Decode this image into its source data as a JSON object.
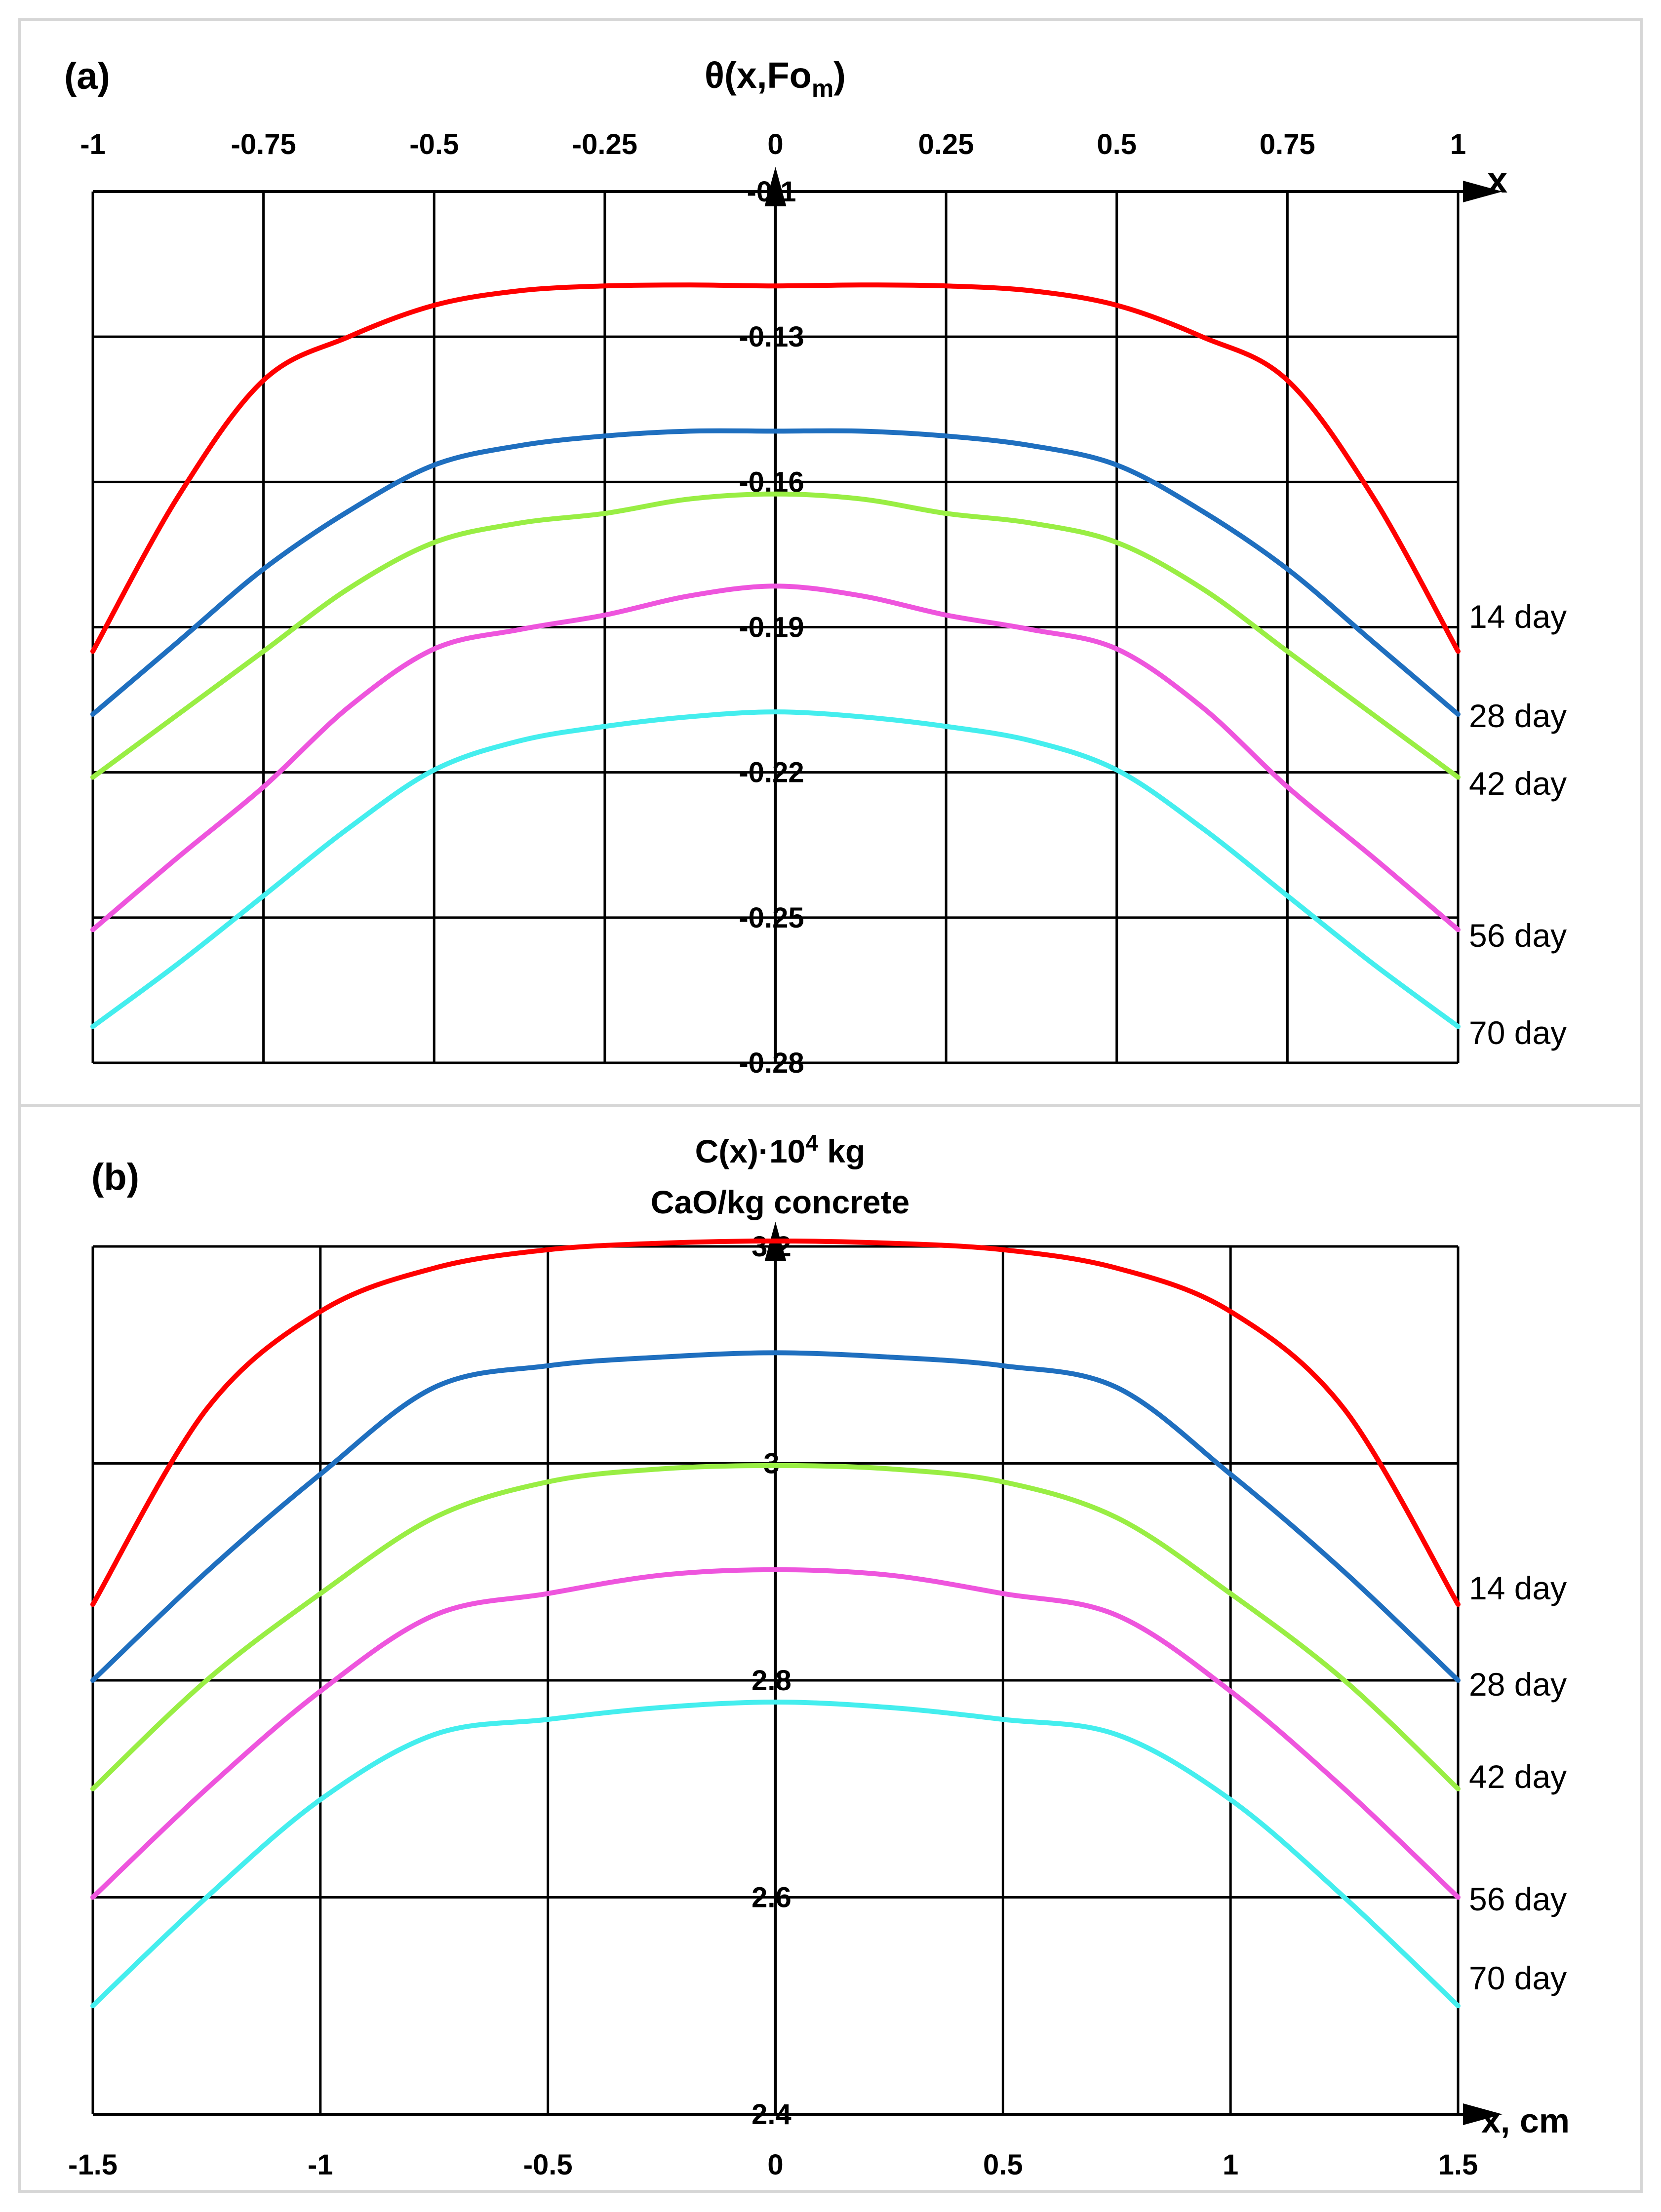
{
  "chart_data": [
    {
      "type": "line",
      "panel_label": "(a)",
      "title": "θ(x,Fo",
      "title_subscript": "m",
      "title_suffix": ")",
      "xlabel": "x",
      "ylabel": "",
      "xlim": [
        -1,
        1
      ],
      "ylim": [
        -0.28,
        -0.1
      ],
      "x_ticks": [
        "-1",
        "-0.75",
        "-0.5",
        "-0.25",
        "0",
        "0.25",
        "0.5",
        "0.75",
        "1"
      ],
      "y_ticks": [
        "-0.1",
        "-0.13",
        "-0.16",
        "-0.19",
        "-0.22",
        "-0.25",
        "-0.28"
      ],
      "grid": true,
      "x": [
        -1,
        -0.875,
        -0.75,
        -0.625,
        -0.5,
        -0.375,
        -0.25,
        -0.125,
        0,
        0.125,
        0.25,
        0.375,
        0.5,
        0.625,
        0.75,
        0.875,
        1
      ],
      "series": [
        {
          "name": "14 day",
          "color": "#ff0000",
          "values": [
            -0.195,
            -0.163,
            -0.139,
            -0.13,
            -0.1235,
            -0.1205,
            -0.1195,
            -0.1193,
            -0.1195,
            -0.1193,
            -0.1195,
            -0.1205,
            -0.1235,
            -0.13,
            -0.139,
            -0.163,
            -0.195
          ]
        },
        {
          "name": "28 day",
          "color": "#1f6fbf",
          "values": [
            -0.208,
            -0.193,
            -0.178,
            -0.166,
            -0.1565,
            -0.1525,
            -0.1505,
            -0.1495,
            -0.1495,
            -0.1495,
            -0.1505,
            -0.1525,
            -0.1565,
            -0.166,
            -0.178,
            -0.193,
            -0.208
          ]
        },
        {
          "name": "42 day",
          "color": "#99ee44",
          "values": [
            -0.221,
            -0.208,
            -0.195,
            -0.182,
            -0.1725,
            -0.1685,
            -0.1665,
            -0.1635,
            -0.1625,
            -0.1635,
            -0.1665,
            -0.1685,
            -0.1725,
            -0.182,
            -0.195,
            -0.208,
            -0.221
          ]
        },
        {
          "name": "56 day",
          "color": "#ee55dd",
          "values": [
            -0.2525,
            -0.2375,
            -0.223,
            -0.2065,
            -0.1945,
            -0.1905,
            -0.1875,
            -0.1835,
            -0.1815,
            -0.1835,
            -0.1875,
            -0.1905,
            -0.1945,
            -0.2065,
            -0.223,
            -0.2375,
            -0.2525
          ]
        },
        {
          "name": "70 day",
          "color": "#44eeee",
          "values": [
            -0.2725,
            -0.2595,
            -0.2455,
            -0.2315,
            -0.2195,
            -0.2135,
            -0.2105,
            -0.2085,
            -0.2075,
            -0.2085,
            -0.2105,
            -0.2135,
            -0.2195,
            -0.2315,
            -0.2455,
            -0.2595,
            -0.2725
          ]
        }
      ]
    },
    {
      "type": "line",
      "panel_label": "(b)",
      "title_line1": "C(x)·10",
      "title_superscript": "4",
      "title_line1_suffix": " kg",
      "title_line2": "CaO/kg concrete",
      "xlabel": "x, cm",
      "ylabel": "",
      "xlim": [
        -1.5,
        1.5
      ],
      "ylim": [
        2.4,
        3.2
      ],
      "x_ticks": [
        "-1.5",
        "-1",
        "-0.5",
        "0",
        "0.5",
        "1",
        "1.5"
      ],
      "y_ticks": [
        "3.2",
        "3",
        "2.8",
        "2.6",
        "2.4"
      ],
      "grid": true,
      "x": [
        -1.5,
        -1.25,
        -1,
        -0.75,
        -0.5,
        -0.25,
        0,
        0.25,
        0.5,
        0.75,
        1,
        1.25,
        1.5
      ],
      "series": [
        {
          "name": "14 day",
          "color": "#ff0000",
          "values": [
            2.87,
            3.05,
            3.14,
            3.18,
            3.197,
            3.203,
            3.205,
            3.203,
            3.197,
            3.18,
            3.14,
            3.05,
            2.87
          ]
        },
        {
          "name": "28 day",
          "color": "#1f6fbf",
          "values": [
            2.8,
            2.9,
            2.99,
            3.07,
            3.09,
            3.098,
            3.102,
            3.098,
            3.09,
            3.07,
            2.99,
            2.9,
            2.8
          ]
        },
        {
          "name": "42 day",
          "color": "#99ee44",
          "values": [
            2.7,
            2.8,
            2.88,
            2.95,
            2.983,
            2.995,
            2.998,
            2.995,
            2.983,
            2.95,
            2.88,
            2.8,
            2.7
          ]
        },
        {
          "name": "56 day",
          "color": "#ee55dd",
          "values": [
            2.6,
            2.7,
            2.79,
            2.86,
            2.88,
            2.897,
            2.902,
            2.897,
            2.88,
            2.86,
            2.79,
            2.7,
            2.6
          ]
        },
        {
          "name": "70 day",
          "color": "#44eeee",
          "values": [
            2.5,
            2.6,
            2.69,
            2.75,
            2.764,
            2.775,
            2.78,
            2.775,
            2.764,
            2.75,
            2.69,
            2.6,
            2.5
          ]
        }
      ]
    }
  ]
}
